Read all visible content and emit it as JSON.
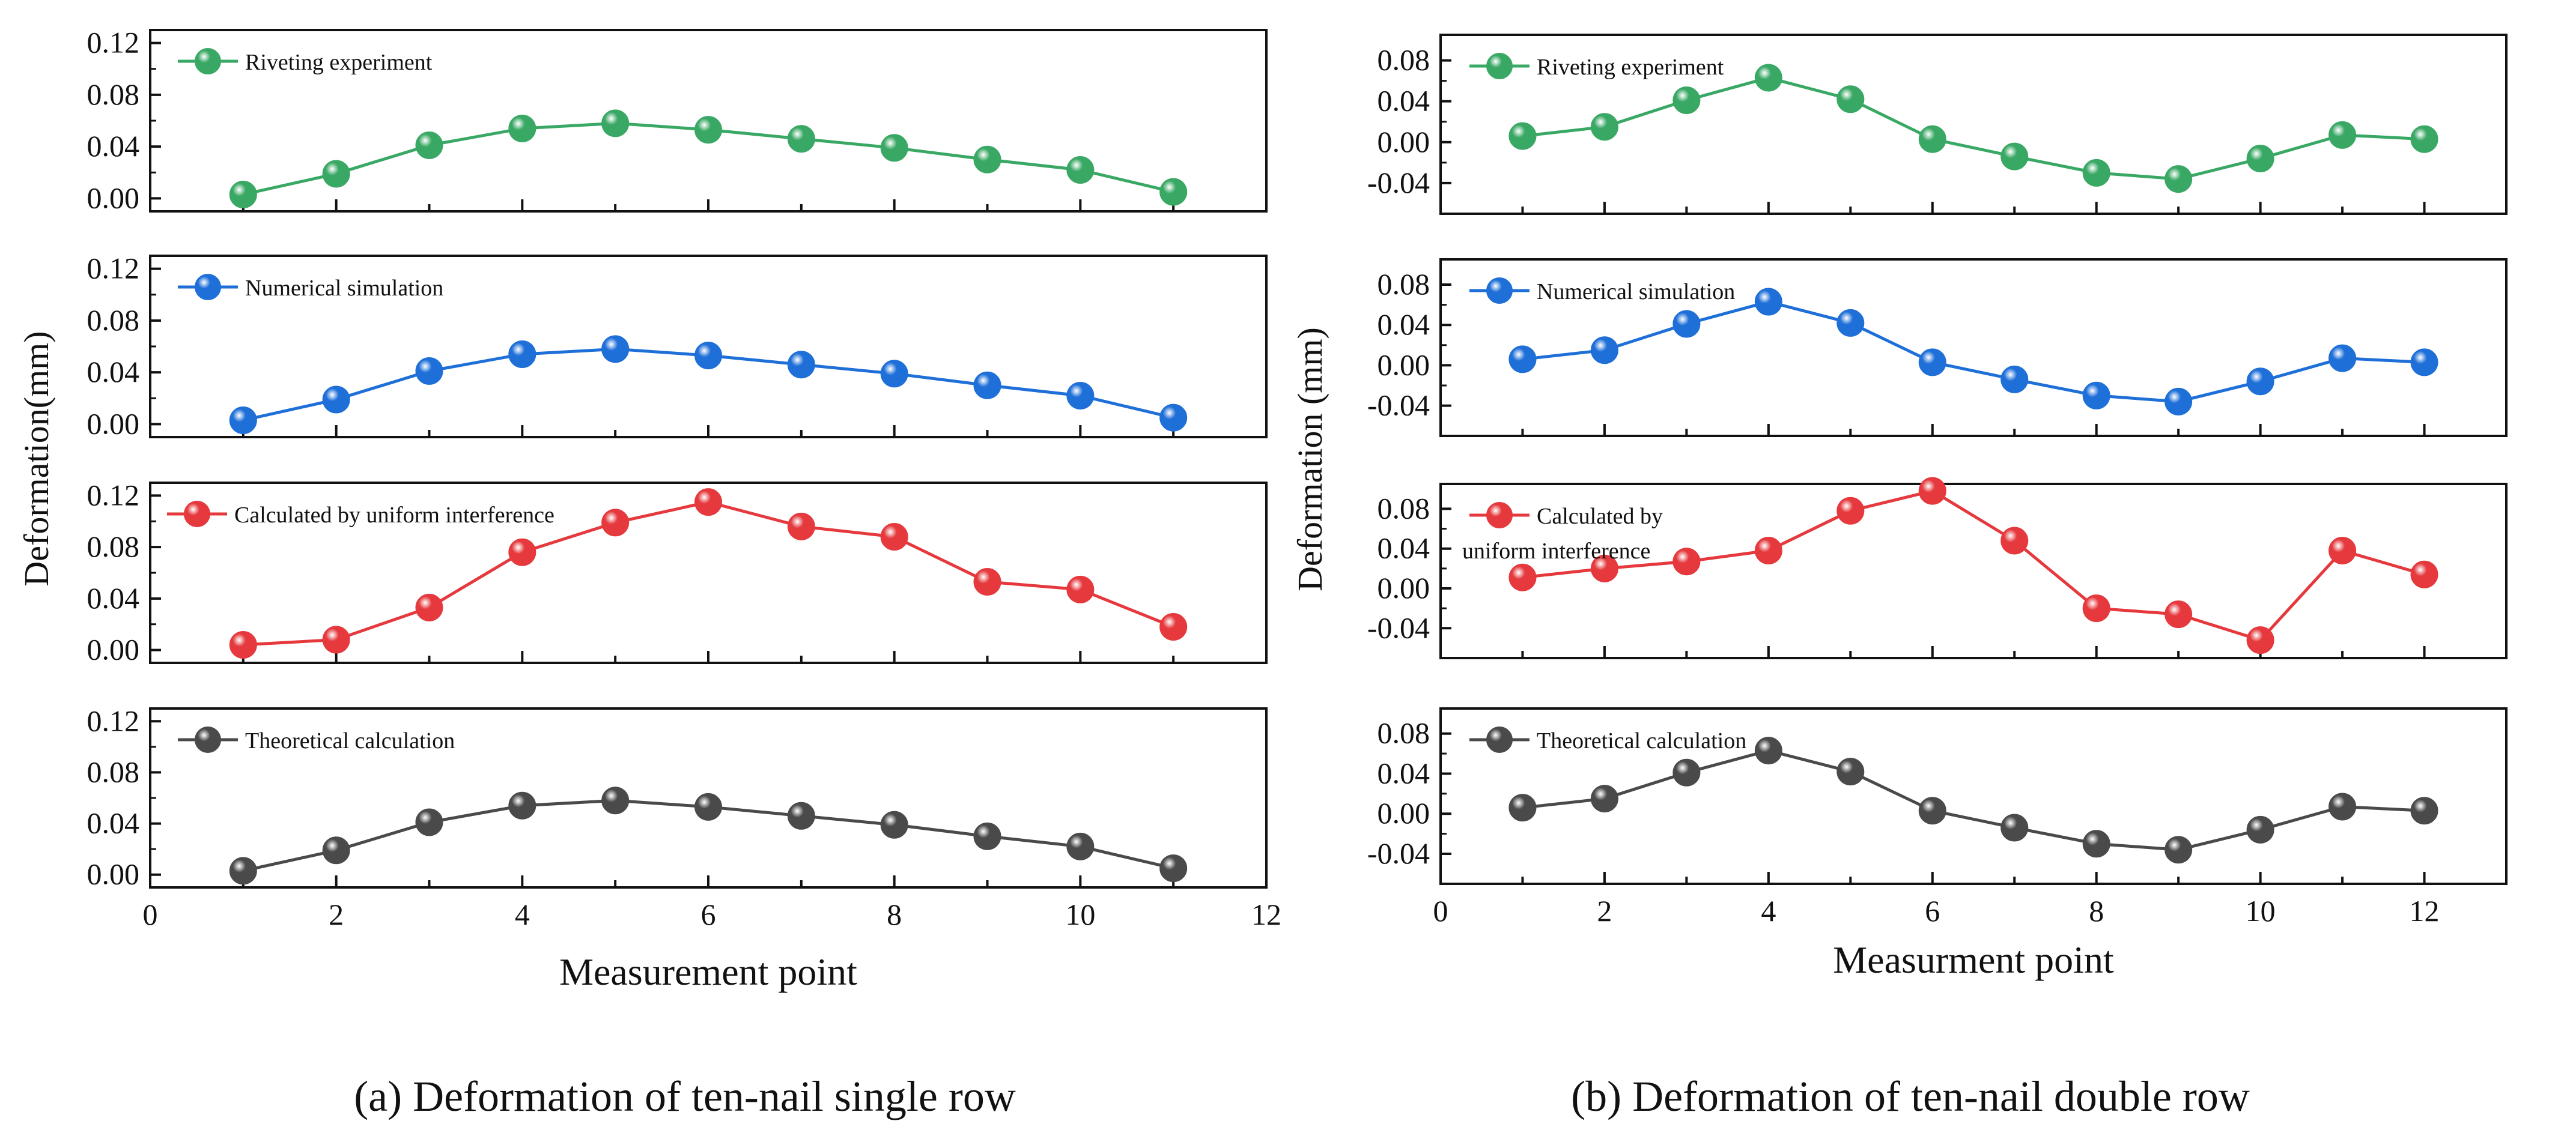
{
  "figure": {
    "caption_a": "(a)  Deformation of ten-nail single row",
    "caption_b": "(b) Deformation of ten-nail double row"
  },
  "chart_data": [
    {
      "id": "a",
      "type": "line",
      "title": "(a)  Deformation of ten-nail single row",
      "xlabel": "Measurement point",
      "ylabel": "Deformation(mm)",
      "xlim": [
        0,
        12
      ],
      "xticks": [
        0,
        2,
        4,
        6,
        8,
        10,
        12
      ],
      "ylim": [
        -0.01,
        0.13
      ],
      "yticks": [
        0.0,
        0.04,
        0.08,
        0.12
      ],
      "ytick_labels": [
        "0.00",
        "0.04",
        "0.08",
        "0.12"
      ],
      "x": [
        1,
        2,
        3,
        4,
        5,
        6,
        7,
        8,
        9,
        10,
        11
      ],
      "series": [
        {
          "name": "Riveting experiment",
          "color": "#3aa865",
          "values": [
            0.003,
            0.019,
            0.041,
            0.054,
            0.058,
            0.053,
            0.046,
            0.039,
            0.03,
            0.022,
            0.005
          ]
        },
        {
          "name": "Numerical simulation",
          "color": "#1e6fd8",
          "values": [
            0.003,
            0.019,
            0.041,
            0.054,
            0.058,
            0.053,
            0.046,
            0.039,
            0.03,
            0.022,
            0.005
          ]
        },
        {
          "name": "Calculated by uniform interference",
          "color": "#e5393d",
          "values": [
            0.004,
            0.008,
            0.033,
            0.076,
            0.099,
            0.115,
            0.096,
            0.088,
            0.053,
            0.047,
            0.018
          ]
        },
        {
          "name": "Theoretical calculation",
          "color": "#4a4a4a",
          "values": [
            0.003,
            0.019,
            0.041,
            0.054,
            0.058,
            0.053,
            0.046,
            0.039,
            0.03,
            0.022,
            0.005
          ]
        }
      ]
    },
    {
      "id": "b",
      "type": "line",
      "title": "(b) Deformation of ten-nail double row",
      "xlabel": "Measurment point",
      "ylabel": "Deformation (mm)",
      "xlim": [
        0,
        13
      ],
      "xticks": [
        0,
        2,
        4,
        6,
        8,
        10,
        12
      ],
      "ylim": [
        -0.07,
        0.105
      ],
      "yticks": [
        -0.04,
        0.0,
        0.04,
        0.08
      ],
      "ytick_labels": [
        "-0.04",
        "0.00",
        "0.04",
        "0.08"
      ],
      "x": [
        1,
        2,
        3,
        4,
        5,
        6,
        7,
        8,
        9,
        10,
        11,
        12
      ],
      "series": [
        {
          "name": "Riveting experiment",
          "color": "#3aa865",
          "values": [
            0.006,
            0.015,
            0.041,
            0.063,
            0.042,
            0.003,
            -0.014,
            -0.03,
            -0.036,
            -0.016,
            0.007,
            0.003
          ]
        },
        {
          "name": "Numerical simulation",
          "color": "#1e6fd8",
          "values": [
            0.006,
            0.015,
            0.041,
            0.063,
            0.042,
            0.003,
            -0.014,
            -0.03,
            -0.036,
            -0.016,
            0.007,
            0.003
          ]
        },
        {
          "name": "Calculated by uniform interference",
          "legend_lines": [
            "Calculated by",
            "uniform interference"
          ],
          "color": "#e5393d",
          "values": [
            0.011,
            0.02,
            0.027,
            0.038,
            0.078,
            0.098,
            0.048,
            -0.02,
            -0.026,
            -0.052,
            0.038,
            0.014
          ]
        },
        {
          "name": "Theoretical calculation",
          "color": "#4a4a4a",
          "values": [
            0.006,
            0.015,
            0.041,
            0.063,
            0.042,
            0.003,
            -0.014,
            -0.03,
            -0.036,
            -0.016,
            0.007,
            0.003
          ]
        }
      ]
    }
  ]
}
